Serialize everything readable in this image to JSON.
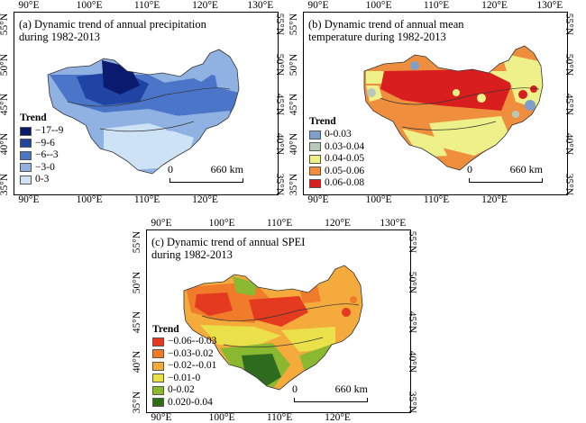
{
  "panels": [
    {
      "title_line1": "(a) Dynamic trend of annual precipitation",
      "title_line2": "during 1982-2013",
      "legend_title": "Trend",
      "legend": [
        {
          "label": "−17--9",
          "color": "#0a1a6e"
        },
        {
          "label": "−9-6",
          "color": "#1f44a3"
        },
        {
          "label": "−6--3",
          "color": "#4a75c9"
        },
        {
          "label": "−3-0",
          "color": "#8fb2e3"
        },
        {
          "label": "0-3",
          "color": "#cde2f4"
        }
      ],
      "scale_label": "660 km",
      "scale_zero": "0"
    },
    {
      "title_line1": "(b) Dynamic trend of annual mean",
      "title_line2": "temperature during 1982-2013",
      "legend_title": "Trend",
      "legend": [
        {
          "label": "0-0.03",
          "color": "#7f9fc8"
        },
        {
          "label": "0.03-0.04",
          "color": "#b7c9b8"
        },
        {
          "label": "0.04-0.05",
          "color": "#eef08a"
        },
        {
          "label": "0.05-0.06",
          "color": "#ef8f3d"
        },
        {
          "label": "0.06-0.08",
          "color": "#d81e1e"
        }
      ],
      "scale_label": "660 km",
      "scale_zero": "0"
    },
    {
      "title_line1": "(c) Dynamic trend of annual SPEI",
      "title_line2": "during 1982-2013",
      "legend_title": "Trend",
      "legend": [
        {
          "label": "−0.06--0.03",
          "color": "#e33a20"
        },
        {
          "label": "−0.03-0.02",
          "color": "#f07b2a"
        },
        {
          "label": "−0.02--0.01",
          "color": "#f5ab3c"
        },
        {
          "label": "−0.01-0",
          "color": "#e9e04a"
        },
        {
          "label": "0-0.02",
          "color": "#8ab830"
        },
        {
          "label": "0.020-0.04",
          "color": "#2f6b1f"
        }
      ],
      "scale_label": "660 km",
      "scale_zero": "0"
    }
  ],
  "lon_ticks": [
    "90°E",
    "100°E",
    "110°E",
    "120°E",
    "130°E"
  ],
  "lat_ticks": [
    "55°N",
    "50°N",
    "45°N",
    "40°N",
    "35°N"
  ]
}
